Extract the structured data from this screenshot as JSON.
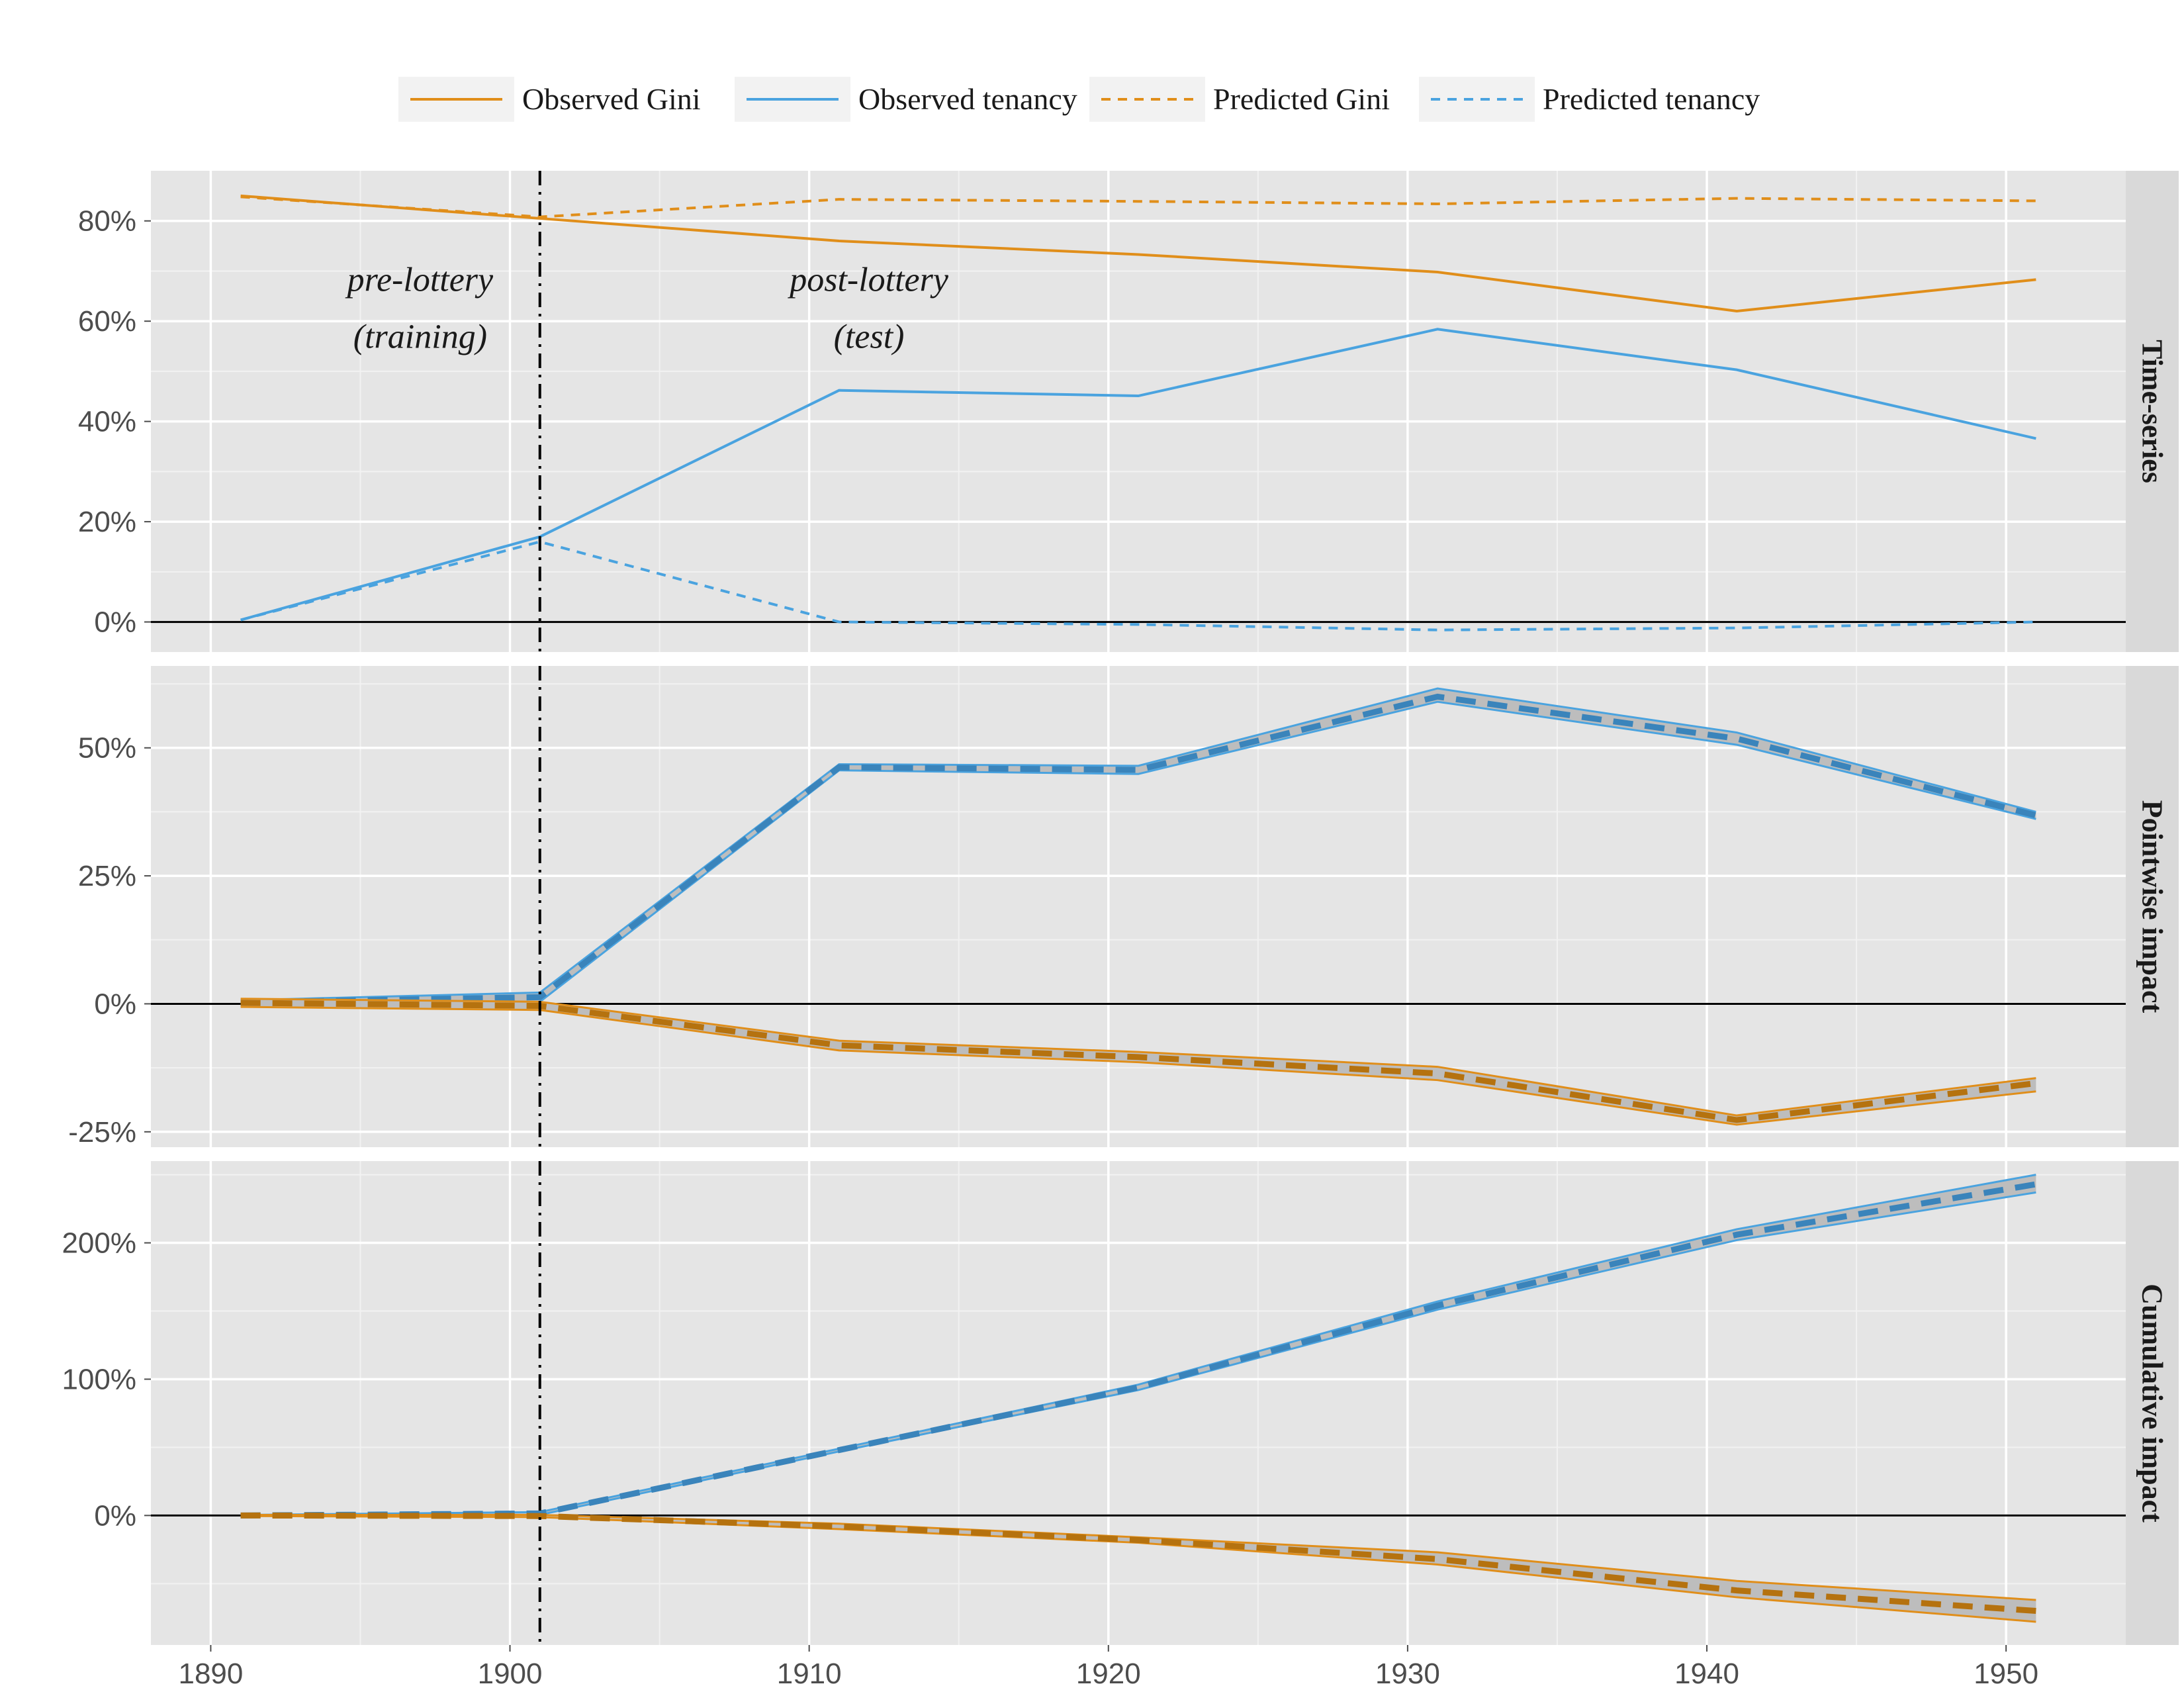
{
  "chart_data": {
    "type": "line",
    "colors": {
      "gini": "#E08E1A",
      "tenancy": "#4AA3DF",
      "band": "#BDBDBD",
      "panel_bg": "#E5E5E5",
      "strip_bg": "#D9D9D9"
    },
    "legend": {
      "position": "top",
      "entries": [
        {
          "label": "Observed Gini",
          "color": "#E08E1A",
          "style": "solid"
        },
        {
          "label": "Observed tenancy",
          "color": "#4AA3DF",
          "style": "solid"
        },
        {
          "label": "Predicted Gini",
          "color": "#E08E1A",
          "style": "dashed"
        },
        {
          "label": "Predicted tenancy",
          "color": "#4AA3DF",
          "style": "dashed"
        }
      ]
    },
    "x": [
      1891,
      1901,
      1911,
      1921,
      1931,
      1941,
      1951
    ],
    "xlim": [
      1888,
      1954
    ],
    "xticks": [
      1890,
      1900,
      1910,
      1920,
      1930,
      1940,
      1950
    ],
    "xtick_labels": [
      "1890",
      "1900",
      "1910",
      "1920",
      "1930",
      "1940",
      "1950"
    ],
    "vline_x": 1901,
    "annotations": [
      {
        "line1": "pre-lottery",
        "line2": "(training)",
        "x": 1897,
        "y": 0.65
      },
      {
        "line1": "post-lottery",
        "line2": "(test)",
        "x": 1912,
        "y": 0.65
      }
    ],
    "panels": [
      {
        "strip": "Time-series",
        "ylim": [
          -0.06,
          0.9
        ],
        "yticks": [
          0,
          0.2,
          0.4,
          0.6,
          0.8
        ],
        "ytick_labels": [
          "0%",
          "20%",
          "40%",
          "60%",
          "80%"
        ],
        "series": [
          {
            "name": "Observed Gini",
            "color": "#E08E1A",
            "dash": false,
            "values": [
              0.85,
              0.805,
              0.76,
              0.733,
              0.698,
              0.62,
              0.683
            ]
          },
          {
            "name": "Observed tenancy",
            "color": "#4AA3DF",
            "dash": false,
            "values": [
              0.004,
              0.17,
              0.462,
              0.451,
              0.584,
              0.503,
              0.366
            ]
          },
          {
            "name": "Predicted Gini",
            "color": "#E08E1A",
            "dash": true,
            "values": [
              0.848,
              0.808,
              0.843,
              0.839,
              0.834,
              0.845,
              0.84
            ]
          },
          {
            "name": "Predicted tenancy",
            "color": "#4AA3DF",
            "dash": true,
            "values": [
              0.004,
              0.16,
              0.0,
              -0.005,
              -0.016,
              -0.012,
              0.0
            ]
          }
        ]
      },
      {
        "strip": "Pointwise impact",
        "ylim": [
          -0.28,
          0.66
        ],
        "yticks": [
          -0.25,
          0,
          0.25,
          0.5
        ],
        "ytick_labels": [
          "-25%",
          "0%",
          "25%",
          "50%"
        ],
        "bands": [
          {
            "color": "#4AA3DF",
            "mean": [
              0.003,
              0.013,
              0.462,
              0.457,
              0.6,
              0.518,
              0.368
            ],
            "upper": [
              0.007,
              0.022,
              0.468,
              0.465,
              0.616,
              0.53,
              0.375
            ],
            "lower": [
              -0.001,
              0.004,
              0.456,
              0.449,
              0.59,
              0.506,
              0.361
            ]
          },
          {
            "color": "#E08E1A",
            "mean": [
              0.002,
              -0.004,
              -0.081,
              -0.104,
              -0.136,
              -0.227,
              -0.155
            ],
            "upper": [
              0.01,
              0.004,
              -0.072,
              -0.094,
              -0.123,
              -0.218,
              -0.145
            ],
            "lower": [
              -0.006,
              -0.012,
              -0.091,
              -0.114,
              -0.149,
              -0.236,
              -0.171
            ]
          }
        ]
      },
      {
        "strip": "Cumulative impact",
        "ylim": [
          -0.95,
          2.6
        ],
        "yticks": [
          0,
          1,
          2
        ],
        "ytick_labels": [
          "0%",
          "100%",
          "200%"
        ],
        "bands": [
          {
            "color": "#4AA3DF",
            "mean": [
              0.0,
              0.015,
              0.48,
              0.94,
              1.54,
              2.06,
              2.43
            ],
            "upper": [
              0.004,
              0.025,
              0.49,
              0.96,
              1.57,
              2.1,
              2.5
            ],
            "lower": [
              -0.004,
              0.005,
              0.47,
              0.92,
              1.51,
              2.02,
              2.37
            ]
          },
          {
            "color": "#E08E1A",
            "mean": [
              0.0,
              -0.004,
              -0.08,
              -0.18,
              -0.32,
              -0.55,
              -0.7
            ],
            "upper": [
              0.004,
              0.004,
              -0.06,
              -0.16,
              -0.27,
              -0.48,
              -0.62
            ],
            "lower": [
              -0.004,
              -0.012,
              -0.1,
              -0.2,
              -0.36,
              -0.6,
              -0.78
            ]
          }
        ]
      }
    ]
  }
}
